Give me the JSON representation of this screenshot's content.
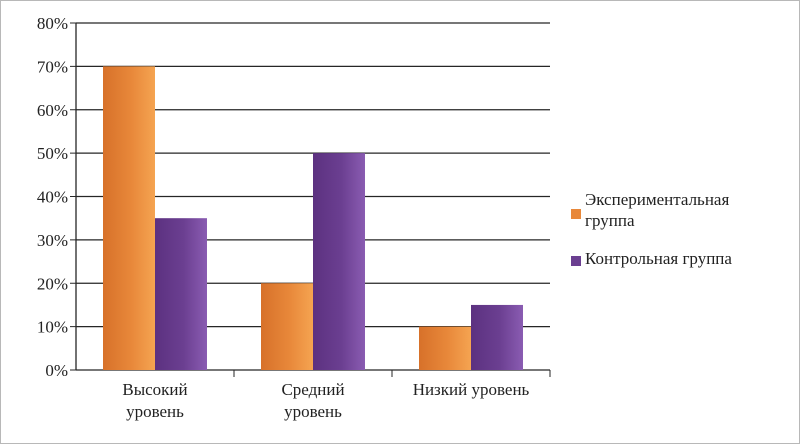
{
  "chart_data": {
    "type": "bar",
    "title": "",
    "xlabel": "",
    "ylabel": "",
    "categories": [
      [
        "Высокий",
        "уровень"
      ],
      [
        "Средний",
        "уровень"
      ],
      [
        "Низкий уровень"
      ]
    ],
    "series": [
      {
        "name": [
          "Экспериментальная",
          "группа"
        ],
        "values": [
          70,
          20,
          10
        ],
        "color": "#e8883a"
      },
      {
        "name": [
          "Контрольная группа"
        ],
        "values": [
          35,
          50,
          15
        ],
        "color": "#6b3f91"
      }
    ],
    "ylim": [
      0,
      80
    ],
    "yticks": [
      0,
      10,
      20,
      30,
      40,
      50,
      60,
      70,
      80
    ],
    "ytick_format": "percent",
    "grid": true,
    "legend": "right"
  }
}
